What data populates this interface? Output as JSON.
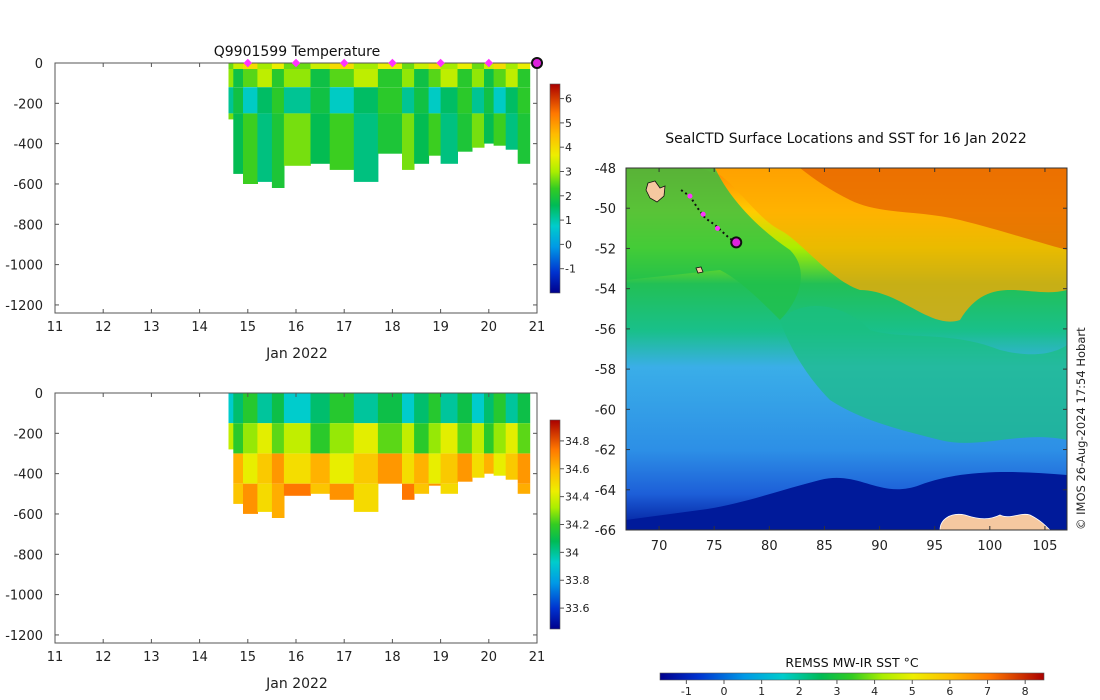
{
  "chart_data": [
    {
      "type": "heatmap",
      "title": "Q9901599  Temperature",
      "xlabel": "Jan 2022",
      "ylabel": "",
      "x_ticks": [
        11,
        12,
        13,
        14,
        15,
        16,
        17,
        18,
        19,
        20,
        21
      ],
      "y_ticks": [
        0,
        -200,
        -400,
        -600,
        -800,
        -1000,
        -1200
      ],
      "xlim": [
        11,
        21
      ],
      "ylim": [
        -1240,
        0
      ],
      "colorbar": {
        "ticks": [
          -1,
          0,
          1,
          2,
          3,
          4,
          5,
          6
        ],
        "range": [
          -2,
          6.6
        ]
      },
      "profiles": [
        {
          "day": 14.6,
          "bottom": -280
        },
        {
          "day": 14.7,
          "bottom": -550
        },
        {
          "day": 14.9,
          "bottom": -600
        },
        {
          "day": 15.2,
          "bottom": -590
        },
        {
          "day": 15.5,
          "bottom": -620
        },
        {
          "day": 15.75,
          "bottom": -510
        },
        {
          "day": 16.3,
          "bottom": -500
        },
        {
          "day": 16.7,
          "bottom": -530
        },
        {
          "day": 17.2,
          "bottom": -590
        },
        {
          "day": 17.7,
          "bottom": -450
        },
        {
          "day": 18.2,
          "bottom": -530
        },
        {
          "day": 18.45,
          "bottom": -500
        },
        {
          "day": 18.75,
          "bottom": -460
        },
        {
          "day": 19.0,
          "bottom": -500
        },
        {
          "day": 19.35,
          "bottom": -440
        },
        {
          "day": 19.65,
          "bottom": -420
        },
        {
          "day": 19.9,
          "bottom": -400
        },
        {
          "day": 20.1,
          "bottom": -410
        },
        {
          "day": 20.35,
          "bottom": -430
        },
        {
          "day": 20.6,
          "bottom": -500
        }
      ],
      "surface_markers": [
        15,
        16,
        17,
        18,
        19,
        20,
        21
      ],
      "temperature_layers": [
        {
          "from": 0,
          "to": -30,
          "value": 3.3
        },
        {
          "from": -30,
          "to": -120,
          "value": 2.5
        },
        {
          "from": -120,
          "to": -250,
          "value": 1.5
        },
        {
          "from": -250,
          "to": -700,
          "value": 2.0
        }
      ]
    },
    {
      "type": "heatmap",
      "title": "",
      "xlabel": "Jan 2022",
      "ylabel": "",
      "x_ticks": [
        11,
        12,
        13,
        14,
        15,
        16,
        17,
        18,
        19,
        20,
        21
      ],
      "y_ticks": [
        0,
        -200,
        -400,
        -600,
        -800,
        -1000,
        -1200
      ],
      "xlim": [
        11,
        21
      ],
      "ylim": [
        -1240,
        0
      ],
      "colorbar": {
        "ticks": [
          33.6,
          33.8,
          34,
          34.2,
          34.4,
          34.6,
          34.8
        ],
        "range": [
          33.45,
          34.95
        ]
      },
      "salinity_layers": [
        {
          "from": 0,
          "to": -150,
          "value": 34.05
        },
        {
          "from": -150,
          "to": -300,
          "value": 34.3
        },
        {
          "from": -300,
          "to": -450,
          "value": 34.55
        },
        {
          "from": -450,
          "to": -700,
          "value": 34.62
        }
      ]
    },
    {
      "type": "heatmap",
      "title": "SealCTD Surface Locations and SST for 16 Jan 2022",
      "xlabel": "",
      "ylabel": "",
      "x_ticks": [
        70,
        75,
        80,
        85,
        90,
        95,
        100,
        105
      ],
      "y_ticks": [
        -48,
        -50,
        -52,
        -54,
        -56,
        -58,
        -60,
        -62,
        -64,
        -66
      ],
      "xlim": [
        67,
        107
      ],
      "ylim": [
        -66,
        -48
      ],
      "track": [
        [
          72.0,
          -49.1
        ],
        [
          72.8,
          -49.4
        ],
        [
          73.5,
          -50.0
        ],
        [
          74.2,
          -50.5
        ],
        [
          75.0,
          -50.8
        ],
        [
          75.8,
          -51.2
        ],
        [
          76.4,
          -51.5
        ],
        [
          77.0,
          -51.7
        ]
      ],
      "track_markers": [
        [
          72.8,
          -49.4
        ],
        [
          74.0,
          -50.3
        ],
        [
          75.3,
          -51.0
        ]
      ],
      "last_position": [
        77.0,
        -51.7
      ],
      "colorbar_label": "REMSS MW-IR SST °C",
      "colorbar": {
        "ticks": [
          -1,
          0,
          1,
          2,
          3,
          4,
          5,
          6,
          7,
          8
        ],
        "range": [
          -1.7,
          8.5
        ]
      },
      "credit": "© IMOS 26-Aug-2024 17:54 Hobart"
    }
  ]
}
